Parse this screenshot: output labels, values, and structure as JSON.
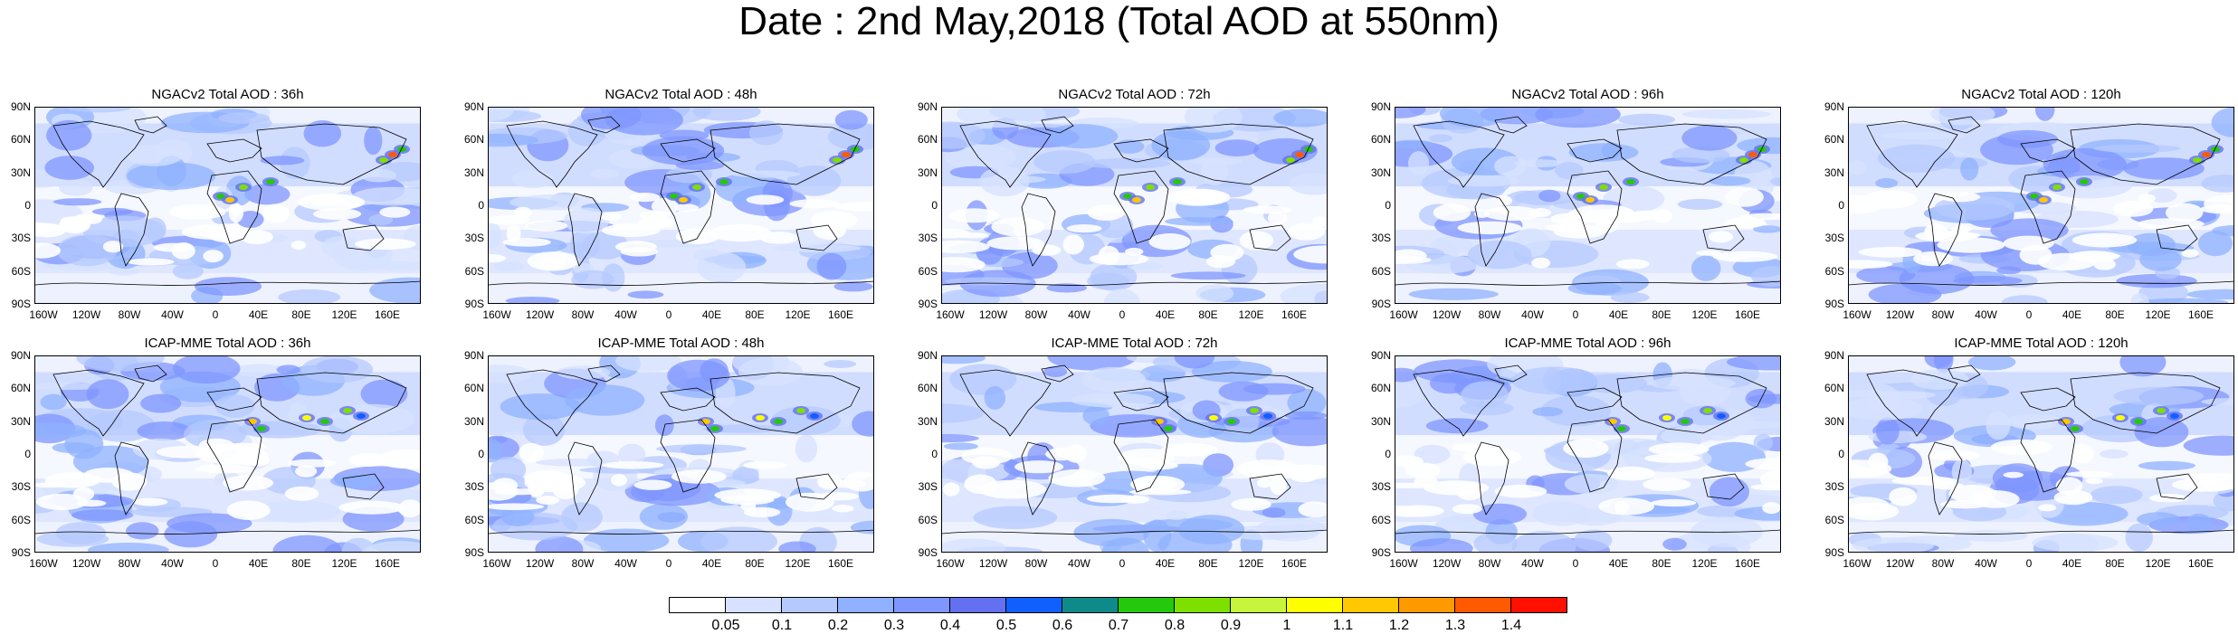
{
  "title": "Date : 2nd May,2018 (Total AOD at 550nm)",
  "rows": [
    {
      "panels": [
        "NGACv2 Total AOD : 36h",
        "NGACv2 Total AOD : 48h",
        "NGACv2 Total AOD : 72h",
        "NGACv2 Total AOD : 96h",
        "NGACv2 Total AOD : 120h"
      ]
    },
    {
      "panels": [
        "ICAP-MME Total AOD : 36h",
        "ICAP-MME Total AOD : 48h",
        "ICAP-MME Total AOD : 72h",
        "ICAP-MME Total AOD : 96h",
        "ICAP-MME Total AOD : 120h"
      ]
    }
  ],
  "lat_labels": [
    "90N",
    "60N",
    "30N",
    "0",
    "30S",
    "60S",
    "90S"
  ],
  "lon_labels": [
    "160W",
    "120W",
    "80W",
    "40W",
    "0",
    "40E",
    "80E",
    "120E",
    "160E"
  ],
  "colorbar": {
    "labels": [
      "0.05",
      "0.1",
      "0.2",
      "0.3",
      "0.4",
      "0.5",
      "0.6",
      "0.7",
      "0.8",
      "0.9",
      "1",
      "1.1",
      "1.2",
      "1.3",
      "1.4"
    ],
    "colors": [
      "#ffffff",
      "#d6e2ff",
      "#b5c9ff",
      "#8fb1ff",
      "#7f96ff",
      "#6370f0",
      "#1060ff",
      "#0f8a8a",
      "#23c90a",
      "#7ee000",
      "#c6f53b",
      "#ffff00",
      "#ffc800",
      "#ff9900",
      "#ff5a00",
      "#ff1000"
    ]
  }
}
